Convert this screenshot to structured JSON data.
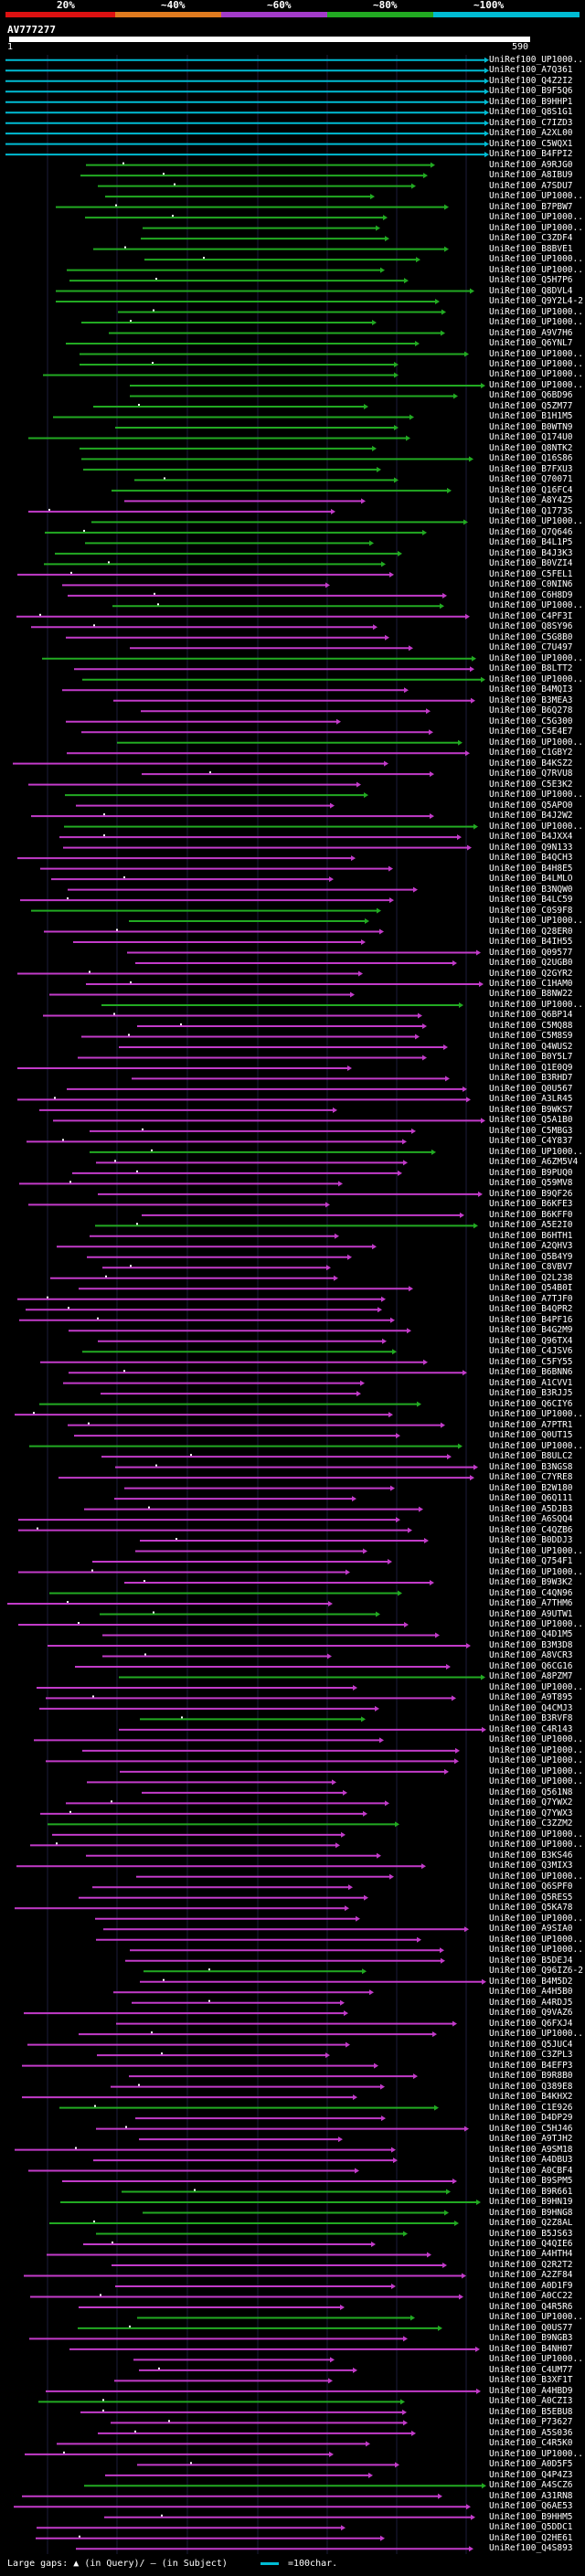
{
  "header": {
    "scale_labels": [
      "20%",
      "~40%",
      "~60%",
      "~80%",
      "~100%"
    ],
    "scale_colors": [
      "#d11",
      "#e07b1f",
      "#a33bc9",
      "#22aa22",
      "#00bcd4"
    ],
    "query_id": "AV777277",
    "query_start": "1",
    "query_end": "590"
  },
  "footer": {
    "large_gaps_label": "Large gaps:",
    "in_query_label": "(in Query)/",
    "in_subject_label": "(in Subject)",
    "scale_note": "=100char."
  },
  "hits": [
    {
      "label": "UniRef100_UP1000...",
      "color": "#00bcd4"
    },
    {
      "label": "UniRef100_A7Q361",
      "color": "#00bcd4"
    },
    {
      "label": "UniRef100_Q4Z2I2",
      "color": "#00bcd4"
    },
    {
      "label": "UniRef100_B9F5Q6",
      "color": "#00bcd4"
    },
    {
      "label": "UniRef100_B9HHP1",
      "color": "#00bcd4"
    },
    {
      "label": "UniRef100_Q8S1G1",
      "color": "#00bcd4"
    },
    {
      "label": "UniRef100_C7IZD3",
      "color": "#00bcd4"
    },
    {
      "label": "UniRef100_A2XL00",
      "color": "#00bcd4"
    },
    {
      "label": "UniRef100_C5WQX1",
      "color": "#00bcd4"
    },
    {
      "label": "UniRef100_B4FPI2",
      "color": "#00bcd4"
    },
    {
      "label": "UniRef100_A9RJG0",
      "color": "#22aa22"
    },
    {
      "label": "UniRef100_A8IBU9",
      "color": "#22aa22"
    },
    {
      "label": "UniRef100_A7SDU7",
      "color": "#22aa22"
    },
    {
      "label": "UniRef100_UP1000...",
      "color": "#22aa22"
    },
    {
      "label": "UniRef100_B7PBW7",
      "color": "#22aa22"
    },
    {
      "label": "UniRef100_UP1000...",
      "color": "#22aa22"
    },
    {
      "label": "UniRef100_UP1000...",
      "color": "#22aa22"
    },
    {
      "label": "UniRef100_C3ZDF4",
      "color": "#22aa22"
    },
    {
      "label": "UniRef100_B8BVE1",
      "color": "#22aa22"
    },
    {
      "label": "UniRef100_UP1000...",
      "color": "#22aa22"
    },
    {
      "label": "UniRef100_UP1000...",
      "color": "#22aa22"
    },
    {
      "label": "UniRef100_Q5H7P6",
      "color": "#22aa22"
    },
    {
      "label": "UniRef100_Q8DVL4",
      "color": "#22aa22"
    },
    {
      "label": "UniRef100_Q9Y2L4-2",
      "color": "#22aa22"
    },
    {
      "label": "UniRef100_UP1000...",
      "color": "#22aa22"
    },
    {
      "label": "UniRef100_UP1000...",
      "color": "#22aa22"
    },
    {
      "label": "UniRef100_A9V7H6",
      "color": "#22aa22"
    },
    {
      "label": "UniRef100_Q6YNL7",
      "color": "#22aa22"
    },
    {
      "label": "UniRef100_UP1000...",
      "color": "#22aa22"
    },
    {
      "label": "UniRef100_UP1000...",
      "color": "#22aa22"
    },
    {
      "label": "UniRef100_UP1000...",
      "color": "#22aa22"
    },
    {
      "label": "UniRef100_UP1000...",
      "color": "#22aa22"
    },
    {
      "label": "UniRef100_Q6BD96",
      "color": "#22aa22"
    },
    {
      "label": "UniRef100_Q5ZM77",
      "color": "#22aa22"
    },
    {
      "label": "UniRef100_B1H1M5",
      "color": "#22aa22"
    },
    {
      "label": "UniRef100_B0WTN9",
      "color": "#22aa22"
    },
    {
      "label": "UniRef100_Q174U0",
      "color": "#22aa22"
    },
    {
      "label": "UniRef100_Q8NTK2",
      "color": "#22aa22"
    },
    {
      "label": "UniRef100_Q16S86",
      "color": "#22aa22"
    },
    {
      "label": "UniRef100_B7FXU3",
      "color": "#22aa22"
    },
    {
      "label": "UniRef100_Q70071",
      "color": "#22aa22"
    },
    {
      "label": "UniRef100_Q16FC4",
      "color": "#22aa22"
    },
    {
      "label": "UniRef100_A8Y4Z5",
      "color": "#c23bc9"
    },
    {
      "label": "UniRef100_Q1773S",
      "color": "#c23bc9"
    },
    {
      "label": "UniRef100_UP1000...",
      "color": "#22aa22"
    },
    {
      "label": "UniRef100_Q7Q646",
      "color": "#22aa22"
    },
    {
      "label": "UniRef100_B4L1P5",
      "color": "#22aa22"
    },
    {
      "label": "UniRef100_B4J3K3",
      "color": "#22aa22"
    },
    {
      "label": "UniRef100_B0VZI4",
      "color": "#22aa22"
    },
    {
      "label": "UniRef100_C5FEL1",
      "color": "#c23bc9"
    },
    {
      "label": "UniRef100_C0NIN6",
      "color": "#c23bc9"
    },
    {
      "label": "UniRef100_C6H8D9",
      "color": "#c23bc9"
    },
    {
      "label": "UniRef100_UP1000...",
      "color": "#22aa22"
    },
    {
      "label": "UniRef100_C4PF3I",
      "color": "#c23bc9"
    },
    {
      "label": "UniRef100_Q8SY96",
      "color": "#c23bc9"
    },
    {
      "label": "UniRef100_C5G8B0",
      "color": "#c23bc9"
    },
    {
      "label": "UniRef100_C7U497",
      "color": "#c23bc9"
    },
    {
      "label": "UniRef100_UP1000...",
      "color": "#22aa22"
    },
    {
      "label": "UniRef100_B8LTT2",
      "color": "#c23bc9"
    },
    {
      "label": "UniRef100_UP1000...",
      "color": "#22aa22"
    },
    {
      "label": "UniRef100_B4MQI3",
      "color": "#c23bc9"
    },
    {
      "label": "UniRef100_B3MEA3",
      "color": "#c23bc9"
    },
    {
      "label": "UniRef100_B6Q278",
      "color": "#c23bc9"
    },
    {
      "label": "UniRef100_C5G300",
      "color": "#c23bc9"
    },
    {
      "label": "UniRef100_C5E4E7",
      "color": "#c23bc9"
    },
    {
      "label": "UniRef100_UP1000...",
      "color": "#22aa22"
    },
    {
      "label": "UniRef100_C1GBY2",
      "color": "#c23bc9"
    },
    {
      "label": "UniRef100_B4KSZ2",
      "color": "#c23bc9"
    },
    {
      "label": "UniRef100_Q7RVU8",
      "color": "#c23bc9"
    },
    {
      "label": "UniRef100_C5E3K2",
      "color": "#c23bc9"
    },
    {
      "label": "UniRef100_UP1000...",
      "color": "#22aa22"
    },
    {
      "label": "UniRef100_Q5APO0",
      "color": "#c23bc9"
    },
    {
      "label": "UniRef100_B4J2W2",
      "color": "#c23bc9"
    },
    {
      "label": "UniRef100_UP1000...",
      "color": "#22aa22"
    },
    {
      "label": "UniRef100_B4JXX4",
      "color": "#c23bc9"
    },
    {
      "label": "UniRef100_Q9N133",
      "color": "#c23bc9"
    },
    {
      "label": "UniRef100_B4QCH3",
      "color": "#c23bc9"
    },
    {
      "label": "UniRef100_B4H8E5",
      "color": "#c23bc9"
    },
    {
      "label": "UniRef100_B4LMLO",
      "color": "#c23bc9"
    },
    {
      "label": "UniRef100_B3NQW0",
      "color": "#c23bc9"
    },
    {
      "label": "UniRef100_B4LC59",
      "color": "#c23bc9"
    },
    {
      "label": "UniRef100_C0S9F8",
      "color": "#22aa22"
    },
    {
      "label": "UniRef100_UP1000...",
      "color": "#22aa22"
    },
    {
      "label": "UniRef100_Q28ER0",
      "color": "#c23bc9"
    },
    {
      "label": "UniRef100_B4IH55",
      "color": "#c23bc9"
    },
    {
      "label": "UniRef100_Q09577",
      "color": "#c23bc9"
    },
    {
      "label": "UniRef100_Q2UGB0",
      "color": "#c23bc9"
    },
    {
      "label": "UniRef100_Q2GYR2",
      "color": "#c23bc9"
    },
    {
      "label": "UniRef100_C1HAM0",
      "color": "#c23bc9"
    },
    {
      "label": "UniRef100_B8NW22",
      "color": "#c23bc9"
    },
    {
      "label": "UniRef100_UP1000...",
      "color": "#22aa22"
    },
    {
      "label": "UniRef100_Q6BP14",
      "color": "#c23bc9"
    },
    {
      "label": "UniRef100_C5MQ88",
      "color": "#c23bc9"
    },
    {
      "label": "UniRef100_C5M8S9",
      "color": "#c23bc9"
    },
    {
      "label": "UniRef100_Q4WUS2",
      "color": "#c23bc9"
    },
    {
      "label": "UniRef100_B0Y5L7",
      "color": "#c23bc9"
    },
    {
      "label": "UniRef100_Q1E0Q9",
      "color": "#c23bc9"
    },
    {
      "label": "UniRef100_B3RHD7",
      "color": "#c23bc9"
    },
    {
      "label": "UniRef100_Q0U567",
      "color": "#c23bc9"
    },
    {
      "label": "UniRef100_A3LR45",
      "color": "#c23bc9"
    },
    {
      "label": "UniRef100_B9WKS7",
      "color": "#c23bc9"
    },
    {
      "label": "UniRef100_Q5A1B0",
      "color": "#c23bc9"
    },
    {
      "label": "UniRef100_C5MBG3",
      "color": "#c23bc9"
    },
    {
      "label": "UniRef100_C4Y837",
      "color": "#c23bc9"
    },
    {
      "label": "UniRef100_UP1000...",
      "color": "#22aa22"
    },
    {
      "label": "UniRef100_A6ZM5V4",
      "color": "#c23bc9"
    },
    {
      "label": "UniRef100_B9PUQ0",
      "color": "#c23bc9"
    },
    {
      "label": "UniRef100_Q59MV8",
      "color": "#c23bc9"
    },
    {
      "label": "UniRef100_B9QF26",
      "color": "#c23bc9"
    },
    {
      "label": "UniRef100_B6KFE3",
      "color": "#c23bc9"
    },
    {
      "label": "UniRef100_B6KFF0",
      "color": "#c23bc9"
    },
    {
      "label": "UniRef100_A5E2I0",
      "color": "#22aa22"
    },
    {
      "label": "UniRef100_B6HTH1",
      "color": "#c23bc9"
    },
    {
      "label": "UniRef100_A2QHV3",
      "color": "#c23bc9"
    },
    {
      "label": "UniRef100_Q5B4Y9",
      "color": "#c23bc9"
    },
    {
      "label": "UniRef100_C8VBV7",
      "color": "#c23bc9"
    },
    {
      "label": "UniRef100_Q2L238",
      "color": "#c23bc9"
    },
    {
      "label": "UniRef100_Q54B0I",
      "color": "#c23bc9"
    },
    {
      "label": "UniRef100_A7TJF0",
      "color": "#c23bc9"
    },
    {
      "label": "UniRef100_B4QPR2",
      "color": "#c23bc9"
    },
    {
      "label": "UniRef100_B4PF16",
      "color": "#c23bc9"
    },
    {
      "label": "UniRef100_B4G2M9",
      "color": "#c23bc9"
    },
    {
      "label": "UniRef100_Q96TX4",
      "color": "#c23bc9"
    },
    {
      "label": "UniRef100_C4JSV6",
      "color": "#22aa22"
    },
    {
      "label": "UniRef100_C5FY55",
      "color": "#c23bc9"
    },
    {
      "label": "UniRef100_B6BNN6",
      "color": "#c23bc9"
    },
    {
      "label": "UniRef100_A1CVV1",
      "color": "#c23bc9"
    },
    {
      "label": "UniRef100_B3RJJ5",
      "color": "#c23bc9"
    },
    {
      "label": "UniRef100_Q6CIY6",
      "color": "#22aa22"
    },
    {
      "label": "UniRef100_UP1000...",
      "color": "#c23bc9"
    },
    {
      "label": "UniRef100_A7PTR1",
      "color": "#c23bc9"
    },
    {
      "label": "UniRef100_Q0UT15",
      "color": "#c23bc9"
    },
    {
      "label": "UniRef100_UP1000...",
      "color": "#22aa22"
    },
    {
      "label": "UniRef100_B8ULC2",
      "color": "#c23bc9"
    },
    {
      "label": "UniRef100_B3NGS8",
      "color": "#c23bc9"
    },
    {
      "label": "UniRef100_C7YRE8",
      "color": "#c23bc9"
    },
    {
      "label": "UniRef100_B2W180",
      "color": "#c23bc9"
    },
    {
      "label": "UniRef100_Q6Q111",
      "color": "#c23bc9"
    },
    {
      "label": "UniRef100_A5DJB3",
      "color": "#c23bc9"
    },
    {
      "label": "UniRef100_A6SQQ4",
      "color": "#c23bc9"
    },
    {
      "label": "UniRef100_C4QZB6",
      "color": "#c23bc9"
    },
    {
      "label": "UniRef100_B0DDJ3",
      "color": "#c23bc9"
    },
    {
      "label": "UniRef100_UP1000...",
      "color": "#c23bc9"
    },
    {
      "label": "UniRef100_Q754F1",
      "color": "#c23bc9"
    },
    {
      "label": "UniRef100_UP1000...",
      "color": "#c23bc9"
    },
    {
      "label": "UniRef100_B9W3K2",
      "color": "#c23bc9"
    },
    {
      "label": "UniRef100_C4QN96",
      "color": "#22aa22"
    },
    {
      "label": "UniRef100_A7THM6",
      "color": "#c23bc9"
    },
    {
      "label": "UniRef100_A9UTW1",
      "color": "#22aa22"
    },
    {
      "label": "UniRef100_UP1000...",
      "color": "#c23bc9"
    },
    {
      "label": "UniRef100_Q4D1M5",
      "color": "#c23bc9"
    },
    {
      "label": "UniRef100_B3M3D8",
      "color": "#c23bc9"
    },
    {
      "label": "UniRef100_A8VCR3",
      "color": "#c23bc9"
    },
    {
      "label": "UniRef100_Q6CG16",
      "color": "#c23bc9"
    },
    {
      "label": "UniRef100_A8PZM7",
      "color": "#22aa22"
    },
    {
      "label": "UniRef100_UP1000...",
      "color": "#c23bc9"
    },
    {
      "label": "UniRef100_A9T895",
      "color": "#c23bc9"
    },
    {
      "label": "UniRef100_Q4CMJ3",
      "color": "#c23bc9"
    },
    {
      "label": "UniRef100_B3RVF8",
      "color": "#22aa22"
    },
    {
      "label": "UniRef100_C4R143",
      "color": "#c23bc9"
    },
    {
      "label": "UniRef100_UP1000...",
      "color": "#c23bc9"
    },
    {
      "label": "UniRef100_UP1000...",
      "color": "#c23bc9"
    },
    {
      "label": "UniRef100_UP1000...",
      "color": "#c23bc9"
    },
    {
      "label": "UniRef100_UP1000...",
      "color": "#c23bc9"
    },
    {
      "label": "UniRef100_UP1000...",
      "color": "#c23bc9"
    },
    {
      "label": "UniRef100_Q561N8",
      "color": "#c23bc9"
    },
    {
      "label": "UniRef100_Q7YWX2",
      "color": "#c23bc9"
    },
    {
      "label": "UniRef100_Q7YWX3",
      "color": "#c23bc9"
    },
    {
      "label": "UniRef100_C3ZZM2",
      "color": "#22aa22"
    },
    {
      "label": "UniRef100_UP1000...",
      "color": "#c23bc9"
    },
    {
      "label": "UniRef100_UP1000...",
      "color": "#c23bc9"
    },
    {
      "label": "UniRef100_B3KS46",
      "color": "#c23bc9"
    },
    {
      "label": "UniRef100_Q3MIX3",
      "color": "#c23bc9"
    },
    {
      "label": "UniRef100_UP1000...",
      "color": "#c23bc9"
    },
    {
      "label": "UniRef100_Q6SPF0",
      "color": "#c23bc9"
    },
    {
      "label": "UniRef100_Q5RES5",
      "color": "#c23bc9"
    },
    {
      "label": "UniRef100_Q5KA78",
      "color": "#c23bc9"
    },
    {
      "label": "UniRef100_UP1000...",
      "color": "#c23bc9"
    },
    {
      "label": "UniRef100_A9SIA0",
      "color": "#c23bc9"
    },
    {
      "label": "UniRef100_UP1000...",
      "color": "#c23bc9"
    },
    {
      "label": "UniRef100_UP1000...",
      "color": "#c23bc9"
    },
    {
      "label": "UniRef100_B5DEJ4",
      "color": "#c23bc9"
    },
    {
      "label": "UniRef100_Q96IZ6-2",
      "color": "#22aa22"
    },
    {
      "label": "UniRef100_B4M5D2",
      "color": "#c23bc9"
    },
    {
      "label": "UniRef100_A4H5B0",
      "color": "#c23bc9"
    },
    {
      "label": "UniRef100_A4RDJ5",
      "color": "#c23bc9"
    },
    {
      "label": "UniRef100_Q9VAZ6",
      "color": "#c23bc9"
    },
    {
      "label": "UniRef100_Q6FXJ4",
      "color": "#c23bc9"
    },
    {
      "label": "UniRef100_UP1000...",
      "color": "#c23bc9"
    },
    {
      "label": "UniRef100_Q5JUC4",
      "color": "#c23bc9"
    },
    {
      "label": "UniRef100_C3ZPL3",
      "color": "#c23bc9"
    },
    {
      "label": "UniRef100_B4EFP3",
      "color": "#c23bc9"
    },
    {
      "label": "UniRef100_B9R8B0",
      "color": "#c23bc9"
    },
    {
      "label": "UniRef100_Q389E8",
      "color": "#c23bc9"
    },
    {
      "label": "UniRef100_B4KHX2",
      "color": "#c23bc9"
    },
    {
      "label": "UniRef100_C1E926",
      "color": "#22aa22"
    },
    {
      "label": "UniRef100_D4DP29",
      "color": "#c23bc9"
    },
    {
      "label": "UniRef100_C5HJ46",
      "color": "#c23bc9"
    },
    {
      "label": "UniRef100_A9TJH2",
      "color": "#c23bc9"
    },
    {
      "label": "UniRef100_A9SM18",
      "color": "#c23bc9"
    },
    {
      "label": "UniRef100_A4DBU3",
      "color": "#c23bc9"
    },
    {
      "label": "UniRef100_A0CBF4",
      "color": "#c23bc9"
    },
    {
      "label": "UniRef100_B9SPM5",
      "color": "#c23bc9"
    },
    {
      "label": "UniRef100_B9R661",
      "color": "#22aa22"
    },
    {
      "label": "UniRef100_B9HN19",
      "color": "#22aa22"
    },
    {
      "label": "UniRef100_B9HNG8",
      "color": "#22aa22"
    },
    {
      "label": "UniRef100_Q2Z8AL",
      "color": "#22aa22"
    },
    {
      "label": "UniRef100_B5JS63",
      "color": "#22aa22"
    },
    {
      "label": "UniRef100_Q4QIE6",
      "color": "#c23bc9"
    },
    {
      "label": "UniRef100_A4HTH4",
      "color": "#c23bc9"
    },
    {
      "label": "UniRef100_Q2R2T2",
      "color": "#c23bc9"
    },
    {
      "label": "UniRef100_A2ZF84",
      "color": "#c23bc9"
    },
    {
      "label": "UniRef100_A0D1F9",
      "color": "#c23bc9"
    },
    {
      "label": "UniRef100_A0CC22",
      "color": "#c23bc9"
    },
    {
      "label": "UniRef100_Q4R5R6",
      "color": "#c23bc9"
    },
    {
      "label": "UniRef100_UP1000...",
      "color": "#22aa22"
    },
    {
      "label": "UniRef100_Q0US77",
      "color": "#22aa22"
    },
    {
      "label": "UniRef100_B9NGB3",
      "color": "#c23bc9"
    },
    {
      "label": "UniRef100_B4NH07",
      "color": "#c23bc9"
    },
    {
      "label": "UniRef100_UP1000...",
      "color": "#c23bc9"
    },
    {
      "label": "UniRef100_C4UM77",
      "color": "#c23bc9"
    },
    {
      "label": "UniRef100_B3XF1T",
      "color": "#c23bc9"
    },
    {
      "label": "UniRef100_A4HBD9",
      "color": "#c23bc9"
    },
    {
      "label": "UniRef100_A0CZI3",
      "color": "#22aa22"
    },
    {
      "label": "UniRef100_B5EBU8",
      "color": "#c23bc9"
    },
    {
      "label": "UniRef100_P73627",
      "color": "#c23bc9"
    },
    {
      "label": "UniRef100_A5S036",
      "color": "#c23bc9"
    },
    {
      "label": "UniRef100_C4R5K0",
      "color": "#c23bc9"
    },
    {
      "label": "UniRef100_UP1000...",
      "color": "#c23bc9"
    },
    {
      "label": "UniRef100_A0D5F5",
      "color": "#c23bc9"
    },
    {
      "label": "UniRef100_Q4P4Z3",
      "color": "#c23bc9"
    },
    {
      "label": "UniRef100_A4SCZ6",
      "color": "#22aa22"
    },
    {
      "label": "UniRef100_A31RN8",
      "color": "#c23bc9"
    },
    {
      "label": "UniRef100_Q6AE53",
      "color": "#c23bc9"
    },
    {
      "label": "UniRef100_B9HHM5",
      "color": "#c23bc9"
    },
    {
      "label": "UniRef100_Q5DDC1",
      "color": "#c23bc9"
    },
    {
      "label": "UniRef100_Q2HE61",
      "color": "#c23bc9"
    },
    {
      "label": "UniRef100_Q4S893",
      "color": "#c23bc9"
    }
  ]
}
